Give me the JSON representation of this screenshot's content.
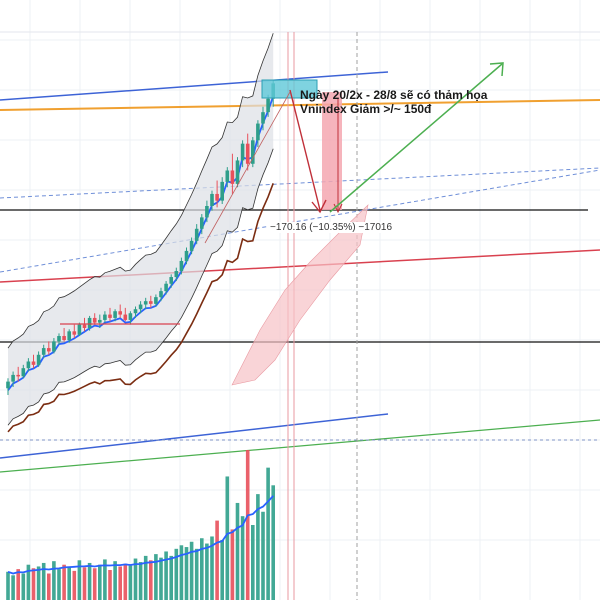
{
  "annotation": {
    "line1": "Ngày 20/2x - 28/8 sẽ có thảm họa",
    "line2": "Vnindex Giảm >/~ 150đ"
  },
  "measure_label": "−170.16 (−10.35%) −17016",
  "colors": {
    "up": "#2e9e8a",
    "down": "#e8505b",
    "ema_fast": "#2962ff",
    "ema_slow": "#7b2d12",
    "channel_blue": "#3d63d6",
    "channel_red": "#d9414f",
    "channel_green": "#4caf50",
    "orange_line": "#f0a030",
    "target_box": "#5fc8d8",
    "cloud": "#f6c2c6",
    "band_fill": "#dde0e6",
    "drop_bar": "#f4a7b0"
  },
  "chart_data": {
    "type": "candlestick",
    "title": "",
    "note": "Candlestick price chart with Bollinger bands, moving averages, trend channels and volume bars; no axis tick labels are visible.",
    "candles_ohlc": [
      [
        880,
        895,
        870,
        890
      ],
      [
        890,
        905,
        882,
        900
      ],
      [
        900,
        912,
        890,
        898
      ],
      [
        898,
        915,
        895,
        910
      ],
      [
        910,
        925,
        905,
        920
      ],
      [
        920,
        930,
        910,
        915
      ],
      [
        915,
        935,
        912,
        930
      ],
      [
        930,
        945,
        925,
        940
      ],
      [
        940,
        950,
        930,
        935
      ],
      [
        935,
        955,
        932,
        950
      ],
      [
        950,
        962,
        945,
        958
      ],
      [
        958,
        970,
        950,
        952
      ],
      [
        952,
        968,
        948,
        965
      ],
      [
        965,
        975,
        955,
        960
      ],
      [
        960,
        978,
        958,
        975
      ],
      [
        975,
        985,
        965,
        970
      ],
      [
        970,
        988,
        966,
        985
      ],
      [
        985,
        992,
        975,
        978
      ],
      [
        978,
        990,
        970,
        982
      ],
      [
        982,
        995,
        978,
        990
      ],
      [
        990,
        1000,
        980,
        985
      ],
      [
        985,
        998,
        980,
        995
      ],
      [
        995,
        1005,
        985,
        990
      ],
      [
        990,
        1000,
        980,
        982
      ],
      [
        982,
        995,
        975,
        992
      ],
      [
        992,
        1002,
        985,
        998
      ],
      [
        998,
        1010,
        992,
        1005
      ],
      [
        1005,
        1015,
        998,
        1010
      ],
      [
        1010,
        1018,
        1000,
        1006
      ],
      [
        1006,
        1020,
        1002,
        1016
      ],
      [
        1016,
        1030,
        1010,
        1025
      ],
      [
        1025,
        1040,
        1020,
        1036
      ],
      [
        1036,
        1050,
        1030,
        1046
      ],
      [
        1046,
        1060,
        1040,
        1055
      ],
      [
        1055,
        1075,
        1050,
        1070
      ],
      [
        1070,
        1090,
        1065,
        1085
      ],
      [
        1085,
        1105,
        1080,
        1100
      ],
      [
        1100,
        1125,
        1095,
        1118
      ],
      [
        1118,
        1140,
        1110,
        1135
      ],
      [
        1135,
        1160,
        1128,
        1152
      ],
      [
        1152,
        1175,
        1145,
        1170
      ],
      [
        1170,
        1190,
        1150,
        1160
      ],
      [
        1160,
        1195,
        1155,
        1188
      ],
      [
        1188,
        1210,
        1180,
        1205
      ],
      [
        1205,
        1230,
        1170,
        1185
      ],
      [
        1185,
        1225,
        1180,
        1220
      ],
      [
        1220,
        1250,
        1210,
        1245
      ],
      [
        1245,
        1260,
        1205,
        1215
      ],
      [
        1215,
        1255,
        1210,
        1250
      ],
      [
        1250,
        1280,
        1240,
        1275
      ],
      [
        1275,
        1300,
        1265,
        1292
      ],
      [
        1292,
        1318,
        1285,
        1312
      ],
      [
        1312,
        1340,
        1300,
        1335
      ]
    ],
    "volume": [
      32,
      28,
      35,
      30,
      40,
      36,
      38,
      42,
      30,
      44,
      35,
      40,
      38,
      33,
      45,
      37,
      42,
      36,
      40,
      46,
      34,
      44,
      38,
      41,
      39,
      47,
      43,
      50,
      45,
      52,
      48,
      55,
      50,
      58,
      62,
      60,
      66,
      58,
      70,
      64,
      72,
      90,
      68,
      140,
      80,
      110,
      95,
      170,
      85,
      120,
      100,
      150,
      130
    ],
    "drop_measure": {
      "change": -170.16,
      "percent": -10.35,
      "ticks": -17016
    }
  }
}
